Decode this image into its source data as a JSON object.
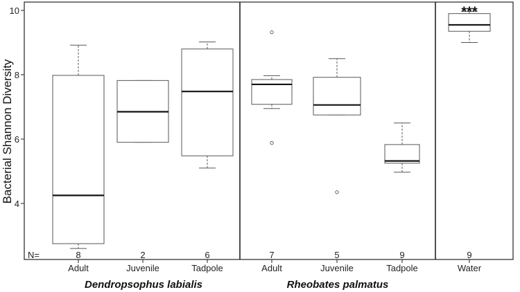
{
  "chart_data": {
    "type": "box",
    "ylabel": "Bacterial Shannon Diversity",
    "ylim": [
      2.4,
      10.2
    ],
    "yticks": [
      4,
      6,
      8,
      10
    ],
    "n_prefix": "N=",
    "groups": [
      {
        "label": "Dendropsophus labialis",
        "members": [
          0,
          1,
          2
        ]
      },
      {
        "label": "Rheobates palmatus",
        "members": [
          3,
          4,
          5
        ]
      },
      {
        "label": "",
        "members": [
          6
        ]
      }
    ],
    "boxes": [
      {
        "category": "Adult",
        "n": "8",
        "min": 2.6,
        "q1": 2.75,
        "median": 4.25,
        "q3": 7.98,
        "max": 8.92,
        "outliers": []
      },
      {
        "category": "Juvenile",
        "n": "2",
        "min": 5.9,
        "q1": 5.9,
        "median": 6.85,
        "q3": 7.82,
        "max": 7.82,
        "outliers": []
      },
      {
        "category": "Tadpole",
        "n": "6",
        "min": 5.1,
        "q1": 5.48,
        "median": 7.48,
        "q3": 8.8,
        "max": 9.02,
        "outliers": []
      },
      {
        "category": "Adult",
        "n": "7",
        "min": 6.95,
        "q1": 7.08,
        "median": 7.7,
        "q3": 7.85,
        "max": 7.97,
        "outliers": [
          9.32,
          5.88
        ]
      },
      {
        "category": "Juvenile",
        "n": "5",
        "min": 6.75,
        "q1": 6.75,
        "median": 7.06,
        "q3": 7.92,
        "max": 8.5,
        "outliers": [
          4.35
        ]
      },
      {
        "category": "Tadpole",
        "n": "9",
        "min": 4.97,
        "q1": 5.25,
        "median": 5.32,
        "q3": 5.83,
        "max": 6.5,
        "outliers": []
      },
      {
        "category": "Water",
        "n": "9",
        "min": 9.0,
        "q1": 9.35,
        "median": 9.55,
        "q3": 9.9,
        "max": 9.97,
        "outliers": []
      }
    ],
    "annotations": [
      {
        "box_index": 6,
        "text": "***"
      }
    ],
    "colors": {
      "box_fill": "#ffffff",
      "box_stroke": "#555555",
      "median": "#111111",
      "frame": "#222222"
    }
  }
}
